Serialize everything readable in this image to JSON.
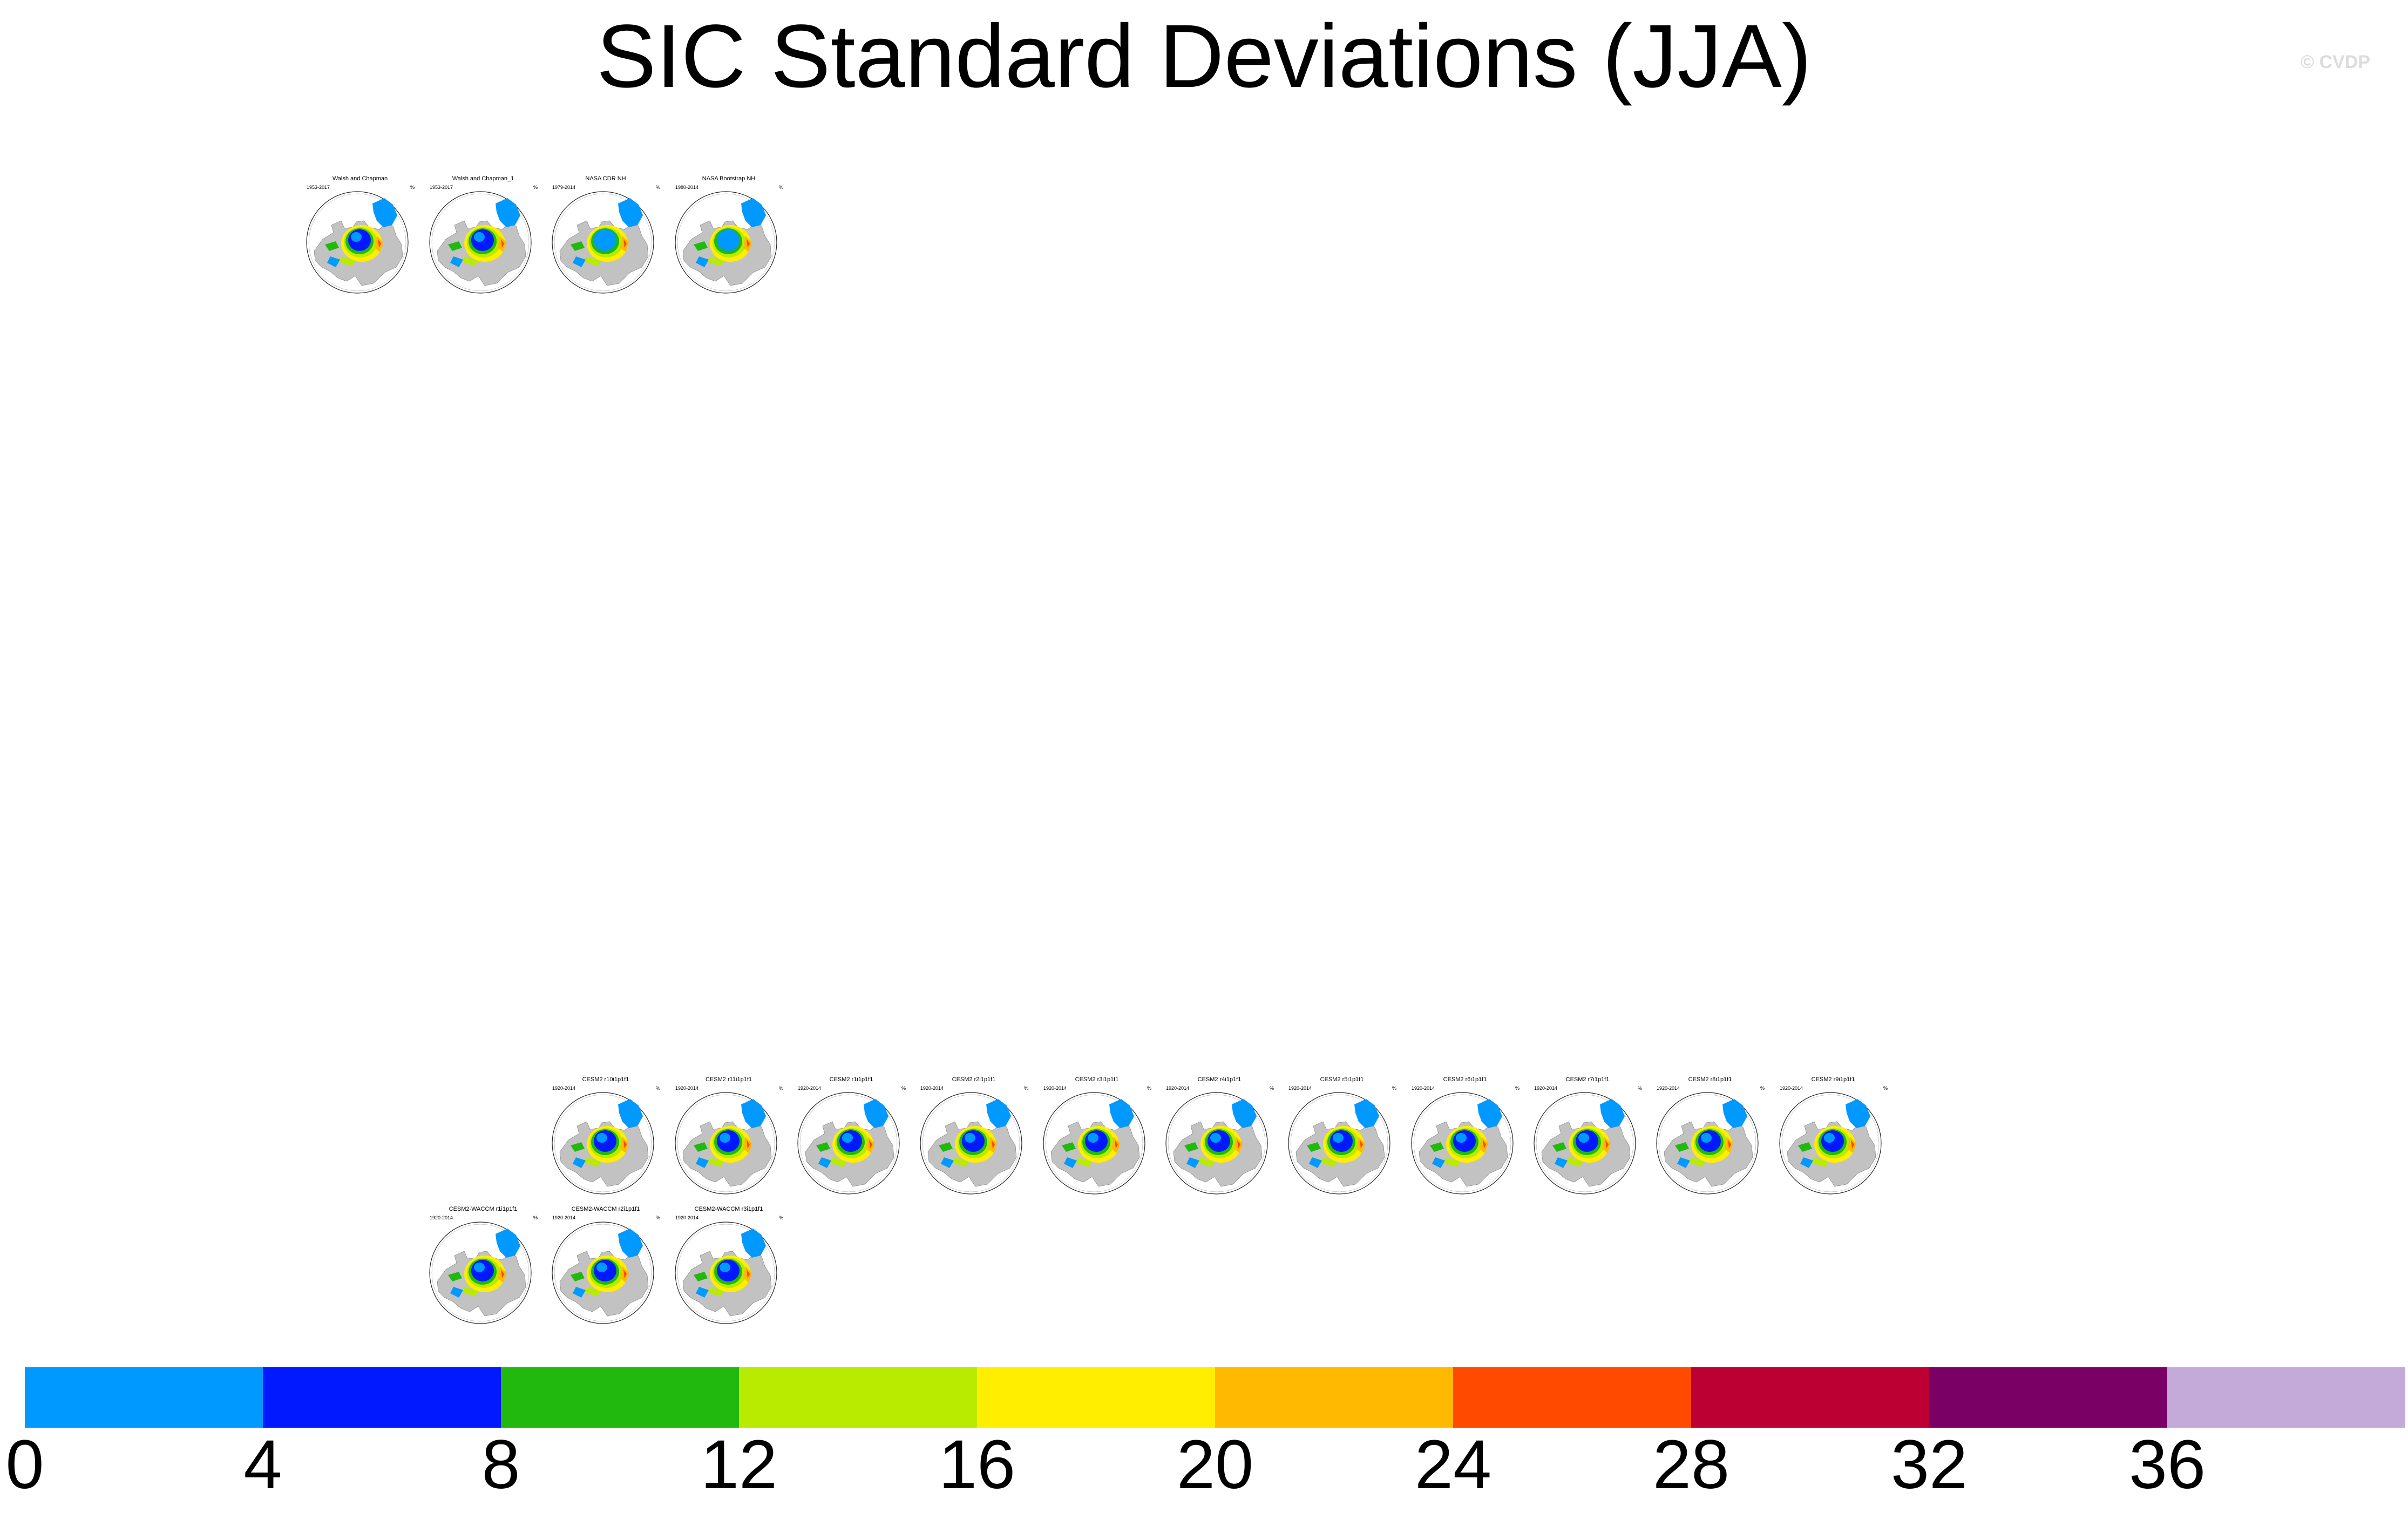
{
  "title": "SIC Standard Deviations (JJA)",
  "copyright": "© CVDP",
  "units": "%",
  "colorbar": {
    "colors": [
      "#0099ff",
      "#0019ff",
      "#21b90e",
      "#b9eb00",
      "#ffee00",
      "#ffb900",
      "#ff4a00",
      "#bc0033",
      "#7b0066",
      "#c4aad8"
    ],
    "tick_labels": [
      "0",
      "4",
      "8",
      "12",
      "16",
      "20",
      "24",
      "28",
      "32",
      "36"
    ]
  },
  "panels": [
    {
      "title": "Walsh and Chapman",
      "years": "1953-2017"
    },
    {
      "title": "Walsh and Chapman_1",
      "years": "1953-2017"
    },
    {
      "title": "NASA CDR NH",
      "years": "1979-2014"
    },
    {
      "title": "NASA Bootstrap NH",
      "years": "1980-2014"
    },
    {
      "title": "CESM2 r10i1p1f1",
      "years": "1920-2014"
    },
    {
      "title": "CESM2 r11i1p1f1",
      "years": "1920-2014"
    },
    {
      "title": "CESM2 r1i1p1f1",
      "years": "1920-2014"
    },
    {
      "title": "CESM2 r2i1p1f1",
      "years": "1920-2014"
    },
    {
      "title": "CESM2 r3i1p1f1",
      "years": "1920-2014"
    },
    {
      "title": "CESM2 r4i1p1f1",
      "years": "1920-2014"
    },
    {
      "title": "CESM2 r5i1p1f1",
      "years": "1920-2014"
    },
    {
      "title": "CESM2 r6i1p1f1",
      "years": "1920-2014"
    },
    {
      "title": "CESM2 r7i1p1f1",
      "years": "1920-2014"
    },
    {
      "title": "CESM2 r8i1p1f1",
      "years": "1920-2014"
    },
    {
      "title": "CESM2 r9i1p1f1",
      "years": "1920-2014"
    },
    {
      "title": "CESM2-WACCM r1i1p1f1",
      "years": "1920-2014"
    },
    {
      "title": "CESM2-WACCM r2i1p1f1",
      "years": "1920-2014"
    },
    {
      "title": "CESM2-WACCM r3i1p1f1",
      "years": "1920-2014"
    }
  ],
  "chart_data": {
    "type": "heatmap",
    "title": "SIC Standard Deviations (JJA)",
    "colorbar_levels": [
      0,
      4,
      8,
      12,
      16,
      20,
      24,
      28,
      32,
      36
    ],
    "colorbar_colors": [
      "#0099ff",
      "#0019ff",
      "#21b90e",
      "#b9eb00",
      "#ffee00",
      "#ffb900",
      "#ff4a00",
      "#bc0033",
      "#7b0066",
      "#c4aad8"
    ]
  }
}
